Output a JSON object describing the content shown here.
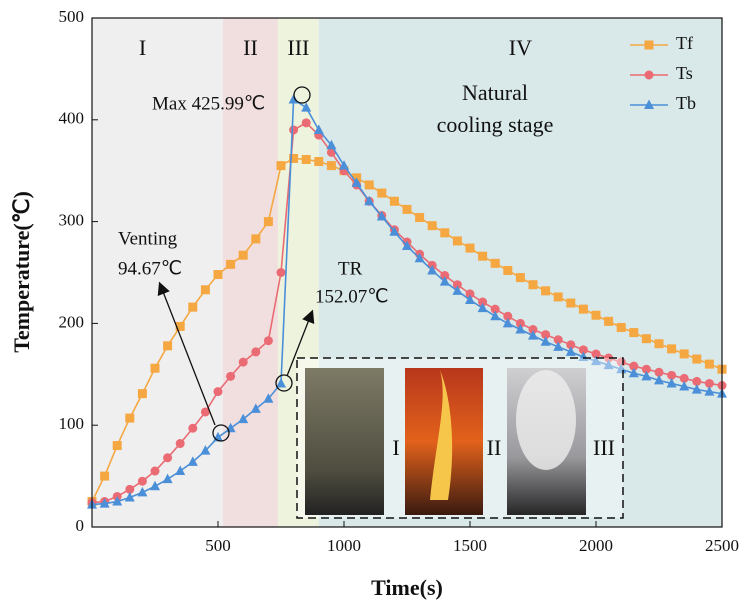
{
  "chart_data": {
    "type": "line",
    "xlabel": "Time(s)",
    "ylabel": "Temperature(℃)",
    "xlim": [
      0,
      2500
    ],
    "xticks": [
      500,
      1000,
      1500,
      2000,
      2500
    ],
    "ylim": [
      0,
      500
    ],
    "yticks": [
      0,
      100,
      200,
      300,
      400,
      500
    ],
    "legend": "upper right",
    "regions": [
      {
        "label": "I",
        "start": 0,
        "end": 520,
        "color": "#efefef"
      },
      {
        "label": "II",
        "start": 520,
        "end": 738,
        "color": "#f1dfdf"
      },
      {
        "label": "III",
        "start": 738,
        "end": 900,
        "color": "#eef3dd"
      },
      {
        "label": "IV",
        "start": 900,
        "end": 2500,
        "color": "#d9e8e8"
      }
    ],
    "annotations": {
      "max": "Max 425.99℃",
      "venting": [
        "Venting",
        "94.67℃"
      ],
      "tr": [
        "TR",
        "152.07℃"
      ],
      "stage": [
        "Natural",
        "cooling stage"
      ]
    },
    "inset_labels": [
      "I",
      "II",
      "III"
    ],
    "x": [
      0,
      50,
      100,
      150,
      200,
      250,
      300,
      350,
      400,
      450,
      500,
      550,
      600,
      650,
      700,
      750,
      800,
      850,
      900,
      950,
      1000,
      1050,
      1100,
      1150,
      1200,
      1250,
      1300,
      1350,
      1400,
      1450,
      1500,
      1550,
      1600,
      1650,
      1700,
      1750,
      1800,
      1850,
      1900,
      1950,
      2000,
      2050,
      2100,
      2150,
      2200,
      2250,
      2300,
      2350,
      2400,
      2450,
      2500
    ],
    "series": [
      {
        "name": "Tf",
        "color": "#f5a742",
        "marker": "square",
        "values": [
          25,
          50,
          80,
          107,
          131,
          156,
          178,
          197,
          216,
          233,
          248,
          258,
          267,
          283,
          300,
          355,
          362,
          361,
          359,
          355,
          350,
          343,
          336,
          328,
          320,
          312,
          304,
          296,
          289,
          281,
          274,
          266,
          259,
          252,
          245,
          238,
          232,
          226,
          220,
          214,
          208,
          202,
          196,
          191,
          185,
          180,
          175,
          170,
          165,
          160,
          155
        ]
      },
      {
        "name": "Ts",
        "color": "#ea6b73",
        "marker": "circle",
        "values": [
          24,
          25,
          30,
          37,
          45,
          55,
          68,
          82,
          97,
          113,
          133,
          148,
          162,
          172,
          183,
          250,
          390,
          397,
          385,
          368,
          350,
          336,
          320,
          306,
          292,
          280,
          268,
          257,
          247,
          238,
          229,
          221,
          214,
          207,
          200,
          194,
          189,
          184,
          179,
          174,
          170,
          166,
          162,
          158,
          155,
          152,
          149,
          146,
          143,
          141,
          139
        ]
      },
      {
        "name": "Tb",
        "color": "#4a8fd8",
        "marker": "triangle",
        "values": [
          22,
          23,
          25,
          29,
          34,
          40,
          47,
          55,
          64,
          75,
          88,
          97,
          106,
          116,
          126,
          141,
          420,
          412,
          390,
          375,
          355,
          338,
          320,
          305,
          290,
          276,
          264,
          252,
          241,
          232,
          223,
          215,
          207,
          200,
          194,
          188,
          182,
          177,
          172,
          167,
          163,
          159,
          155,
          151,
          148,
          144,
          141,
          138,
          135,
          133,
          131
        ]
      }
    ]
  }
}
